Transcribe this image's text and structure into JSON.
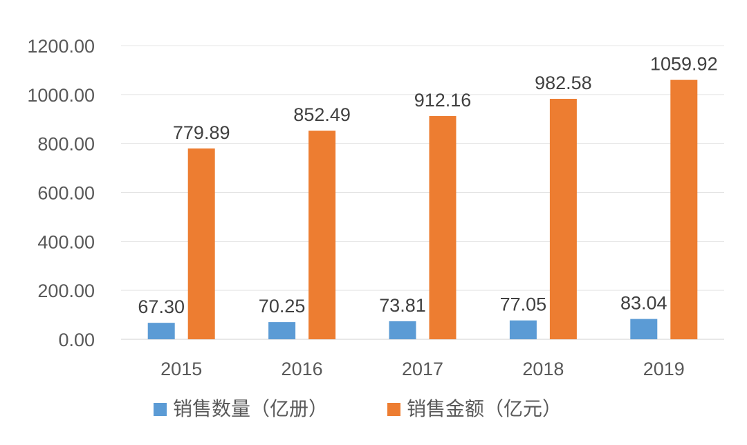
{
  "chart_data": {
    "type": "bar",
    "categories": [
      "2015",
      "2016",
      "2017",
      "2018",
      "2019"
    ],
    "series": [
      {
        "name": "销售数量（亿册）",
        "color": "#5B9BD5",
        "values": [
          67.3,
          70.25,
          73.81,
          77.05,
          83.04
        ],
        "labels": [
          "67.30",
          "70.25",
          "73.81",
          "77.05",
          "83.04"
        ]
      },
      {
        "name": "销售金额（亿元）",
        "color": "#ED7D31",
        "values": [
          779.89,
          852.49,
          912.16,
          982.58,
          1059.92
        ],
        "labels": [
          "779.89",
          "852.49",
          "912.16",
          "982.58",
          "1059.92"
        ]
      }
    ],
    "yticks": [
      "0.00",
      "200.00",
      "400.00",
      "600.00",
      "800.00",
      "1000.00",
      "1200.00"
    ],
    "ylim": [
      0,
      1200
    ],
    "grid": true,
    "legend": "bottom"
  }
}
